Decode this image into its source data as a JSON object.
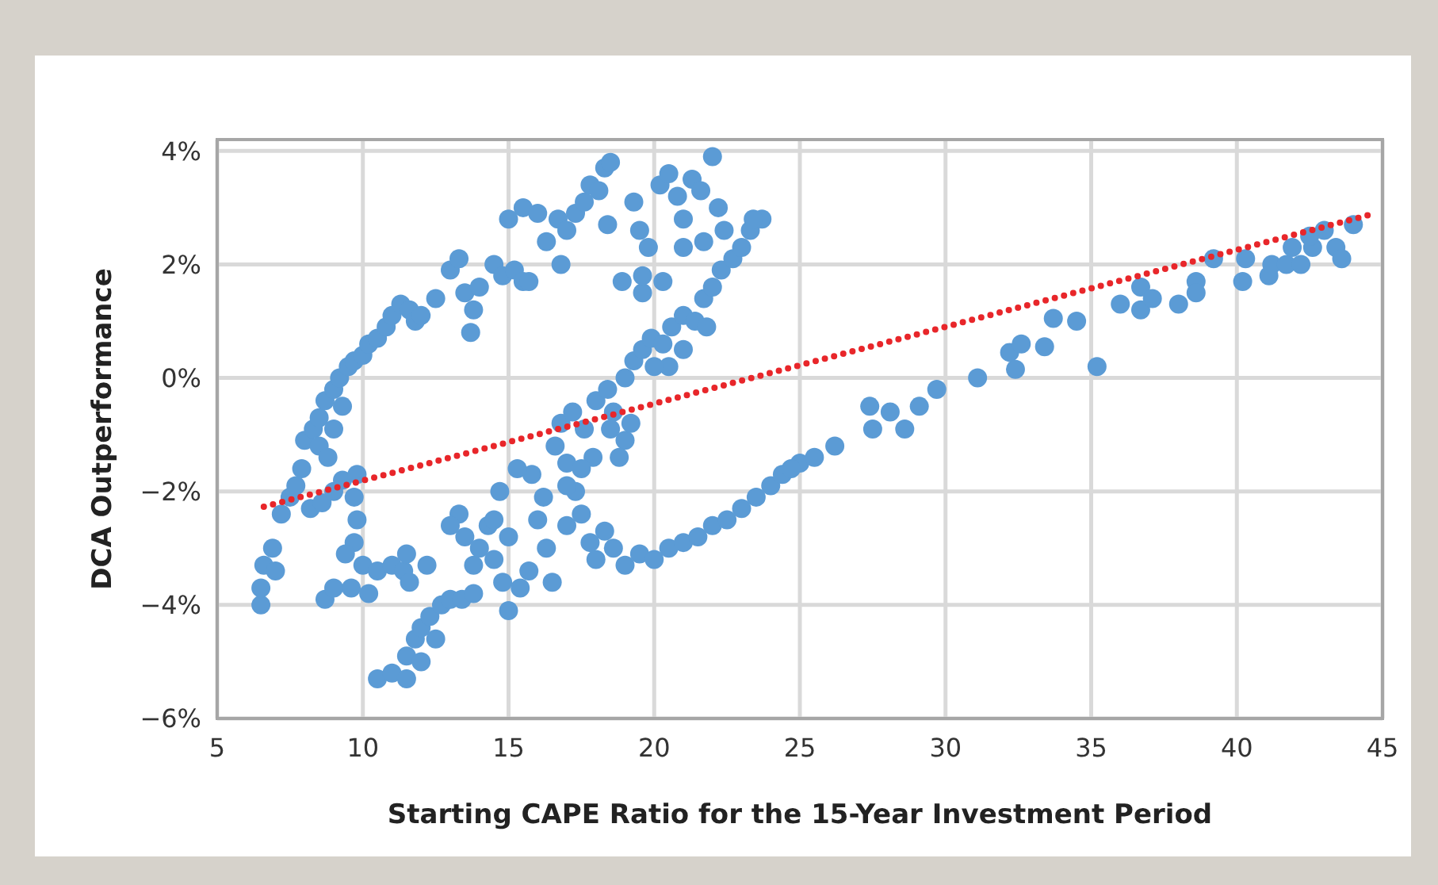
{
  "chart_data": {
    "type": "scatter",
    "xlabel": "Starting CAPE Ratio for the 15-Year Investment Period",
    "ylabel": "DCA Outperformance",
    "xlim": [
      5,
      45
    ],
    "xticks": [
      5,
      10,
      15,
      20,
      25,
      30,
      35,
      40,
      45
    ],
    "ylim": [
      -6,
      4.2
    ],
    "yticks": [
      {
        "value": -6,
        "label": "−6%"
      },
      {
        "value": -4,
        "label": "−4%"
      },
      {
        "value": -2,
        "label": "−2%"
      },
      {
        "value": 0,
        "label": "0%"
      },
      {
        "value": 2,
        "label": "2%"
      },
      {
        "value": 4,
        "label": "4%"
      }
    ],
    "grid": true,
    "marker": "circle",
    "series": [
      {
        "color": "#5b9bd5",
        "x": [
          6.5,
          6.5,
          6.6,
          6.9,
          7.0,
          7.2,
          7.5,
          7.7,
          7.9,
          8.0,
          8.3,
          8.5,
          8.7,
          9.0,
          9.2,
          9.5,
          9.7,
          10.0,
          10.2,
          10.5,
          10.8,
          11.0,
          11.3,
          11.6,
          11.8,
          12.0,
          9.3,
          9.0,
          8.5,
          8.8,
          8.2,
          8.6,
          9.0,
          9.3,
          9.8,
          9.7,
          9.8,
          9.7,
          12.5,
          13.0,
          13.3,
          13.5,
          13.8,
          13.7,
          14.0,
          14.5,
          14.8,
          15.2,
          15.5,
          8.7,
          9.0,
          9.4,
          9.6,
          10.0,
          10.2,
          10.5,
          11.0,
          11.4,
          11.6,
          11.5,
          12.2,
          10.5,
          11.0,
          11.5,
          11.5,
          11.8,
          12.0,
          12.3,
          12.7,
          13.0,
          13.4,
          13.8,
          12.5,
          12.0,
          13.3,
          13.5,
          13.8,
          14.0,
          14.3,
          14.5,
          14.8,
          15.0,
          15.0,
          15.4,
          15.7,
          16.0,
          16.3,
          16.5,
          16.2,
          15.8,
          16.6,
          17.0,
          17.3,
          17.0,
          17.5,
          17.8,
          18.0,
          18.3,
          14.7,
          15.3,
          14.5,
          13.0,
          16.8,
          17.2,
          17.6,
          18.0,
          18.4,
          18.6,
          19.0,
          19.3,
          19.6,
          19.9,
          20.3,
          20.6,
          21.0,
          21.4,
          21.7,
          22.0,
          22.3,
          22.7,
          23.0,
          23.3,
          23.7,
          23.4,
          19.0,
          18.5,
          17.9,
          17.5,
          18.8,
          17.0,
          20.5,
          21.0,
          21.8,
          20.0,
          19.2,
          15.0,
          15.5,
          16.0,
          16.3,
          16.7,
          17.0,
          17.3,
          17.6,
          17.8,
          18.1,
          18.3,
          18.5,
          18.4,
          16.8,
          19.3,
          19.5,
          19.8,
          20.2,
          20.5,
          20.8,
          21.0,
          21.3,
          21.6,
          22.0,
          22.2,
          21.7,
          20.3,
          19.6,
          18.9,
          19.6,
          15.7,
          21.0,
          22.4,
          18.6,
          19.0,
          19.5,
          20.0,
          20.5,
          21.0,
          21.5,
          22.0,
          22.5,
          23.0,
          23.5,
          24.0,
          24.4,
          25.0,
          25.5,
          26.2,
          24.7,
          27.4,
          27.5,
          28.1,
          28.6,
          29.1,
          29.7,
          31.1,
          32.2,
          32.6,
          32.4,
          33.4,
          33.7,
          34.5,
          35.2,
          36.0,
          36.7,
          36.7,
          37.1,
          38.0,
          38.6,
          38.6,
          39.2,
          40.2,
          40.3,
          41.1,
          41.2,
          41.7,
          41.9,
          42.2,
          42.6,
          43.0,
          43.4,
          43.6,
          44.0,
          42.5
        ],
        "values": [
          -4.0,
          -3.7,
          -3.3,
          -3.0,
          -3.4,
          -2.4,
          -2.1,
          -1.9,
          -1.6,
          -1.1,
          -0.9,
          -0.7,
          -0.4,
          -0.2,
          0.0,
          0.2,
          0.3,
          0.4,
          0.6,
          0.7,
          0.9,
          1.1,
          1.3,
          1.2,
          1.0,
          1.1,
          -0.5,
          -0.9,
          -1.2,
          -1.4,
          -2.3,
          -2.2,
          -2.0,
          -1.8,
          -1.7,
          -2.1,
          -2.5,
          -2.9,
          1.4,
          1.9,
          2.1,
          1.5,
          1.2,
          0.8,
          1.6,
          2.0,
          1.8,
          1.9,
          1.7,
          -3.9,
          -3.7,
          -3.1,
          -3.7,
          -3.3,
          -3.8,
          -3.4,
          -3.3,
          -3.4,
          -3.6,
          -3.1,
          -3.3,
          -5.3,
          -5.2,
          -5.3,
          -4.9,
          -4.6,
          -4.4,
          -4.2,
          -4.0,
          -3.9,
          -3.9,
          -3.8,
          -4.6,
          -5.0,
          -2.4,
          -2.8,
          -3.3,
          -3.0,
          -2.6,
          -3.2,
          -3.6,
          -2.8,
          -4.1,
          -3.7,
          -3.4,
          -2.5,
          -3.0,
          -3.6,
          -2.1,
          -1.7,
          -1.2,
          -1.5,
          -2.0,
          -2.6,
          -2.4,
          -2.9,
          -3.2,
          -2.7,
          -2.0,
          -1.6,
          -2.5,
          -2.6,
          -0.8,
          -0.6,
          -0.9,
          -0.4,
          -0.2,
          -0.6,
          0.0,
          0.3,
          0.5,
          0.7,
          0.6,
          0.9,
          1.1,
          1.0,
          1.4,
          1.6,
          1.9,
          2.1,
          2.3,
          2.6,
          2.8,
          2.8,
          -1.1,
          -0.9,
          -1.4,
          -1.6,
          -1.4,
          -1.9,
          0.2,
          0.5,
          0.9,
          0.2,
          -0.8,
          2.8,
          3.0,
          2.9,
          2.4,
          2.8,
          2.6,
          2.9,
          3.1,
          3.4,
          3.3,
          3.7,
          3.8,
          2.7,
          2.0,
          3.1,
          2.6,
          2.3,
          3.4,
          3.6,
          3.2,
          2.8,
          3.5,
          3.3,
          3.9,
          3.0,
          2.4,
          1.7,
          1.5,
          1.7,
          1.8,
          1.7,
          2.3,
          2.6,
          -3.0,
          -3.3,
          -3.1,
          -3.2,
          -3.0,
          -2.9,
          -2.8,
          -2.6,
          -2.5,
          -2.3,
          -2.1,
          -1.9,
          -1.7,
          -1.5,
          -1.4,
          -1.2,
          -1.6,
          -0.5,
          -0.9,
          -0.6,
          -0.9,
          -0.5,
          -0.2,
          0.0,
          0.45,
          0.6,
          0.15,
          0.55,
          1.05,
          1.0,
          0.2,
          1.3,
          1.6,
          1.2,
          1.4,
          1.3,
          1.7,
          1.5,
          2.1,
          1.7,
          2.1,
          1.8,
          2.0,
          2.0,
          2.3,
          2.0,
          2.3,
          2.6,
          2.3,
          2.1,
          2.7,
          2.5
        ]
      },
      {
        "type": "line",
        "color": "#e8262a",
        "line_style": "dotted",
        "marker": "none",
        "x": [
          6.6,
          44.6
        ],
        "values": [
          -2.27,
          2.88
        ]
      }
    ]
  }
}
